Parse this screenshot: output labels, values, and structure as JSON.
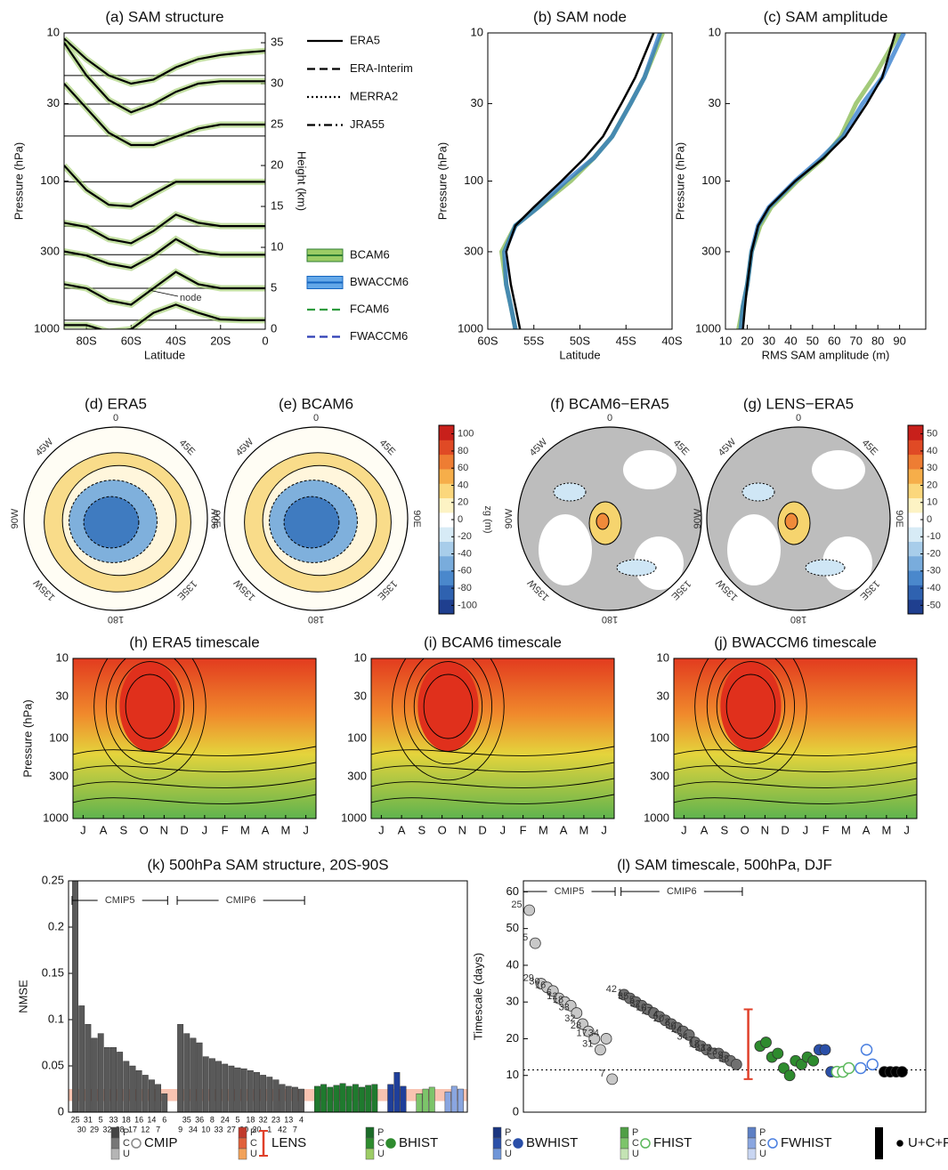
{
  "chart_data": [
    {
      "type": "profile",
      "title": "(a) SAM structure",
      "xlabel": "Latitude",
      "ylabel": "Pressure (hPa)",
      "y2label": "Height (km)",
      "xlim": [
        -90,
        0
      ],
      "xticks": [
        {
          "value": -80,
          "label": "80S"
        },
        {
          "value": -60,
          "label": "60S"
        },
        {
          "value": -40,
          "label": "40S"
        },
        {
          "value": -20,
          "label": "20S"
        },
        0
      ],
      "ylim": [
        1000,
        10
      ],
      "yticks": [
        10,
        30,
        100,
        300,
        1000
      ],
      "log": true,
      "y2lim": [
        0,
        36.2
      ],
      "y2ticks": [
        0,
        5,
        10,
        15,
        20,
        25,
        30,
        35
      ],
      "x": [
        -90,
        -80,
        -70,
        -60,
        -50,
        -40,
        -30,
        -20,
        -10,
        0
      ],
      "profiles": [
        {
          "baseline": 31,
          "values": [
            35.5,
            33,
            31,
            30,
            30.5,
            32,
            33,
            33.5,
            33.8,
            34
          ]
        },
        {
          "baseline": 27.5,
          "values": [
            35,
            31,
            28,
            26.5,
            27.5,
            29,
            30,
            30.3,
            30.3,
            30.3
          ]
        },
        {
          "baseline": 23.6,
          "values": [
            30,
            27,
            24,
            22.5,
            22.5,
            23.5,
            24.5,
            25,
            25,
            25
          ]
        },
        {
          "baseline": 18,
          "values": [
            20,
            17,
            15.2,
            15,
            16.5,
            18,
            18,
            18,
            18,
            18
          ]
        },
        {
          "baseline": 12.6,
          "values": [
            13,
            12.5,
            11,
            10.5,
            12,
            14,
            13,
            12.6,
            12.6,
            12.6
          ]
        },
        {
          "baseline": 9.1,
          "values": [
            9.5,
            9,
            8,
            7.5,
            9,
            11,
            9.5,
            9.1,
            9.1,
            9.1
          ]
        },
        {
          "baseline": 5,
          "values": [
            5.5,
            5,
            3.5,
            3,
            5,
            7,
            5.5,
            5,
            5,
            5
          ]
        },
        {
          "baseline": 1.1,
          "values": [
            0.5,
            0.5,
            -0.3,
            0,
            2,
            3,
            2,
            1.2,
            1.1,
            1.1
          ]
        }
      ],
      "annotation": "node"
    },
    {
      "type": "legend",
      "series": [
        {
          "name": "ERA5",
          "style": "solid",
          "color": "#000000"
        },
        {
          "name": "ERA-Interim",
          "style": "dash",
          "color": "#000000"
        },
        {
          "name": "MERRA2",
          "style": "dot",
          "color": "#000000"
        },
        {
          "name": "JRA55",
          "style": "dashdot",
          "color": "#000000"
        },
        {
          "name": "BCAM6",
          "style": "band",
          "color": "#2e7d32",
          "fill": "#9ccc65"
        },
        {
          "name": "BWACCM6",
          "style": "band",
          "color": "#1565c0",
          "fill": "#64a8e8"
        },
        {
          "name": "FCAM6",
          "style": "dash",
          "color": "#2e9b3e"
        },
        {
          "name": "FWACCM6",
          "style": "dash",
          "color": "#2d3fb5"
        }
      ]
    },
    {
      "type": "line",
      "title": "(b) SAM node",
      "xlabel": "Latitude",
      "ylabel": "Pressure (hPa)",
      "xlim": [
        -60,
        -40
      ],
      "xticks": [
        {
          "value": -60,
          "label": "60S"
        },
        {
          "value": -55,
          "label": "55S"
        },
        {
          "value": -50,
          "label": "50S"
        },
        {
          "value": -45,
          "label": "45S"
        },
        {
          "value": -40,
          "label": "40S"
        }
      ],
      "ylim": [
        1000,
        10
      ],
      "yticks": [
        10,
        30,
        100,
        300,
        1000
      ],
      "log": true,
      "y": [
        1000,
        700,
        500,
        300,
        200,
        150,
        100,
        70,
        50,
        30,
        20,
        10
      ],
      "series": [
        {
          "color": "#7cb342",
          "values": [
            -57,
            -57.5,
            -58,
            -58.5,
            -57,
            -54.5,
            -51,
            -48.5,
            -46.5,
            -44.5,
            -43,
            -41
          ]
        },
        {
          "color": "#1e6fc8",
          "values": [
            -57,
            -57.5,
            -58,
            -58.2,
            -57,
            -54.5,
            -51.5,
            -48.5,
            -46.5,
            -44.5,
            -43,
            -41.3
          ]
        },
        {
          "color": "#000000",
          "values": [
            -56.5,
            -57,
            -57.5,
            -58,
            -57,
            -55,
            -52,
            -49.5,
            -47.5,
            -45.5,
            -44,
            -42
          ]
        }
      ]
    },
    {
      "type": "line",
      "title": "(c) SAM amplitude",
      "xlabel": "RMS SAM amplitude (m)",
      "ylabel": "Pressure (hPa)",
      "xlim": [
        10,
        102
      ],
      "xticks": [
        10,
        20,
        30,
        40,
        50,
        60,
        70,
        80,
        90
      ],
      "ylim": [
        1000,
        10
      ],
      "yticks": [
        10,
        30,
        100,
        300,
        1000
      ],
      "log": true,
      "y": [
        1000,
        700,
        500,
        300,
        200,
        150,
        100,
        70,
        50,
        30,
        20,
        10
      ],
      "series": [
        {
          "color": "#7cb342",
          "values": [
            16,
            18,
            20,
            22,
            26,
            31,
            43,
            55,
            63,
            70,
            78,
            90
          ]
        },
        {
          "color": "#1e6fc8",
          "values": [
            17,
            18,
            20,
            22,
            25,
            30,
            42,
            54,
            64,
            73,
            82,
            92
          ]
        },
        {
          "color": "#000000",
          "values": [
            18,
            19,
            20,
            22,
            25,
            30,
            42,
            55,
            65,
            75,
            82,
            88
          ]
        }
      ]
    },
    {
      "type": "map",
      "title": "(d) ERA5",
      "style": "field",
      "lon_labels": [
        "0",
        "45E",
        "90E",
        "135E",
        "180",
        "135W",
        "90W",
        "45W"
      ]
    },
    {
      "type": "map",
      "title": "(e) BCAM6",
      "style": "field",
      "lon_labels": [
        "0",
        "45E",
        "90E",
        "135E",
        "180",
        "135W",
        "90W",
        "45W"
      ]
    },
    {
      "type": "map",
      "title": "(f) BCAM6−ERA5",
      "style": "anomaly",
      "lon_labels": [
        "0",
        "45E",
        "90E",
        "135E",
        "180",
        "135W",
        "90W",
        "45W"
      ]
    },
    {
      "type": "map",
      "title": "(g) LENS−ERA5",
      "style": "anomaly",
      "lon_labels": [
        "0",
        "45E",
        "90E",
        "135E",
        "180",
        "135W",
        "90W",
        "45W"
      ]
    },
    {
      "type": "colorbar",
      "label": "zg (m)",
      "ylim": [
        -110,
        110
      ],
      "yticks": [
        -100,
        -80,
        -60,
        -40,
        -20,
        0,
        20,
        40,
        60,
        80,
        100
      ],
      "colors": [
        "#1f3f8f",
        "#2f62b0",
        "#4a88cc",
        "#79acdc",
        "#a8cdea",
        "#d7ebf6",
        "#ffffff",
        "#fdf3c4",
        "#fbd77c",
        "#f6ae4a",
        "#ee7d33",
        "#e04a25",
        "#c8201b"
      ]
    },
    {
      "type": "colorbar",
      "label": "zg (m)",
      "ylim": [
        -55,
        55
      ],
      "yticks": [
        -50,
        -40,
        -30,
        -20,
        -10,
        0,
        10,
        20,
        30,
        40,
        50
      ],
      "colors": [
        "#1f3f8f",
        "#2f62b0",
        "#4a88cc",
        "#79acdc",
        "#a8cdea",
        "#d7ebf6",
        "#ffffff",
        "#fdf3c4",
        "#fbd77c",
        "#f6ae4a",
        "#ee7d33",
        "#e04a25",
        "#c8201b"
      ]
    },
    {
      "type": "heatmap",
      "title": "(h) ERA5 timescale",
      "ylabel": "Pressure (hPa)",
      "categories": [
        "J",
        "A",
        "S",
        "O",
        "N",
        "D",
        "J",
        "F",
        "M",
        "A",
        "M",
        "J"
      ],
      "ylim": [
        1000,
        10
      ],
      "yticks": [
        10,
        30,
        100,
        300,
        1000
      ],
      "log": true
    },
    {
      "type": "heatmap",
      "title": "(i) BCAM6 timescale",
      "categories": [
        "J",
        "A",
        "S",
        "O",
        "N",
        "D",
        "J",
        "F",
        "M",
        "A",
        "M",
        "J"
      ],
      "ylim": [
        1000,
        10
      ],
      "yticks": [
        10,
        30,
        100,
        300,
        1000
      ],
      "log": true
    },
    {
      "type": "heatmap",
      "title": "(j) BWACCM6 timescale",
      "categories": [
        "J",
        "A",
        "S",
        "O",
        "N",
        "D",
        "J",
        "F",
        "M",
        "A",
        "M",
        "J"
      ],
      "ylim": [
        1000,
        10
      ],
      "yticks": [
        10,
        30,
        100,
        300,
        1000
      ],
      "log": true
    },
    {
      "type": "bar",
      "title": "(k) 500hPa SAM structure, 20S-90S",
      "ylabel": "NMSE",
      "ylim": [
        0,
        0.25
      ],
      "yticks": [
        0,
        0.05,
        0.1,
        0.15,
        0.2,
        0.25
      ],
      "reanalysis_range": [
        0.012,
        0.025
      ],
      "groups": [
        {
          "label": "CMIP5",
          "count": 15,
          "color": "#595959"
        },
        {
          "label": "CMIP6",
          "count": 20,
          "color": "#595959"
        },
        {
          "count": 10,
          "color": "#1f7a2e"
        },
        {
          "count": 3,
          "color": "#1f3f9a"
        },
        {
          "count": 3,
          "color": "#7cc46a"
        },
        {
          "count": 3,
          "color": "#8aa6e0"
        }
      ],
      "categories": [
        "25",
        "30",
        "31",
        "29",
        "5",
        "32",
        "33",
        "28",
        "18",
        "17",
        "16",
        "12",
        "14",
        "7",
        "6",
        "9",
        "35",
        "34",
        "36",
        "10",
        "8",
        "33",
        "24",
        "27",
        "5",
        "30",
        "18",
        "20",
        "32",
        "1",
        "23",
        "42",
        "13",
        "7",
        "4",
        null,
        null,
        null,
        null,
        null,
        null,
        null,
        null,
        null,
        null,
        null,
        null,
        null,
        null,
        null,
        null,
        null,
        null,
        null
      ],
      "values": [
        0.25,
        0.115,
        0.095,
        0.08,
        0.085,
        0.07,
        0.07,
        0.065,
        0.055,
        0.05,
        0.045,
        0.04,
        0.035,
        0.03,
        0.02,
        0.095,
        0.085,
        0.08,
        0.075,
        0.06,
        0.058,
        0.055,
        0.052,
        0.05,
        0.048,
        0.047,
        0.045,
        0.043,
        0.04,
        0.038,
        0.035,
        0.03,
        0.028,
        0.027,
        0.025,
        0.028,
        0.03,
        0.027,
        0.029,
        0.031,
        0.028,
        0.03,
        0.027,
        0.029,
        0.03,
        0.03,
        0.043,
        0.028,
        0.02,
        0.025,
        0.027,
        0.022,
        0.028,
        0.025
      ]
    },
    {
      "type": "scatter",
      "title": "(l) SAM timescale, 500hPa, DJF",
      "ylabel": "Timescale (days)",
      "xlim": [
        0,
        68
      ],
      "ylim": [
        0,
        63
      ],
      "yticks": [
        0,
        10,
        20,
        30,
        40,
        50,
        60
      ],
      "reference": 11.5,
      "groups": [
        {
          "label": "CMIP5",
          "span": [
            0,
            15.5
          ]
        },
        {
          "label": "CMIP6",
          "span": [
            16.5,
            37
          ]
        }
      ],
      "series": [
        {
          "color": "#c8c8c8",
          "x": [
            1,
            2,
            3,
            4,
            5,
            6,
            7,
            8,
            9,
            10,
            11,
            12,
            13,
            14,
            15
          ],
          "values": [
            55,
            46,
            35,
            34,
            33,
            31,
            30,
            29,
            27,
            24,
            22,
            20,
            17,
            20,
            9
          ],
          "labels": [
            "25",
            "5",
            "29",
            "30",
            "16",
            "6",
            "12",
            "18",
            "33",
            "32",
            "28",
            "17",
            "31",
            "34",
            "7"
          ]
        },
        {
          "color": "#707070",
          "x": [
            17,
            18,
            19,
            20,
            21,
            22,
            23,
            24,
            25,
            26,
            27,
            28,
            29,
            30,
            31,
            32,
            33,
            34,
            35,
            36
          ],
          "values": [
            32,
            31,
            30,
            29,
            28,
            27,
            26,
            25,
            24,
            23,
            22,
            21,
            19,
            18,
            17,
            16,
            16,
            15,
            14,
            13
          ],
          "labels": [
            "42",
            "1",
            "35",
            "5",
            "32",
            "10",
            "27",
            "4",
            "20",
            "8",
            "30",
            "24",
            "34",
            "7",
            "18",
            "33",
            "13",
            "23",
            "9",
            "38"
          ]
        },
        {
          "color": "#e0402a",
          "x": [
            38
          ],
          "low": [
            9
          ],
          "high": [
            28
          ]
        },
        {
          "color": "#2e8b2e",
          "x": [
            40,
            41,
            42,
            43,
            44,
            45,
            46,
            47,
            48,
            49
          ],
          "values": [
            18,
            19,
            15,
            16,
            12,
            10,
            14,
            13,
            15,
            14
          ]
        },
        {
          "color": "#2a4fa8",
          "x": [
            50,
            51,
            52
          ],
          "values": [
            17,
            17,
            11
          ]
        },
        {
          "color": "#5cb85c",
          "hollow": true,
          "x": [
            53,
            54,
            55
          ],
          "values": [
            11,
            11,
            12
          ]
        },
        {
          "color": "#4a7fe0",
          "hollow": true,
          "x": [
            57,
            58,
            59
          ],
          "values": [
            12,
            17,
            13
          ]
        },
        {
          "color": "#000000",
          "x": [
            61,
            62,
            63,
            64
          ],
          "values": [
            11,
            11,
            11,
            11
          ]
        }
      ]
    },
    {
      "type": "key",
      "levels": [
        "P",
        "C",
        "U"
      ],
      "entries": [
        {
          "name": "CMIP",
          "colors": [
            "#444444",
            "#777777",
            "#b5b5b5"
          ],
          "marker": "hollow",
          "color": "#888888"
        },
        {
          "name": "LENS",
          "colors": [
            "#c0392b",
            "#e0603a",
            "#f2a25a"
          ],
          "marker": "errorbar",
          "color": "#e0402a"
        },
        {
          "name": "BHIST",
          "colors": [
            "#1b6b28",
            "#2e8b2e",
            "#9ccc65"
          ],
          "marker": "circle",
          "color": "#2e8b2e"
        },
        {
          "name": "BWHIST",
          "colors": [
            "#1a3580",
            "#2a4fa8",
            "#6f95d8"
          ],
          "marker": "circle",
          "color": "#2a4fa8"
        },
        {
          "name": "FHIST",
          "colors": [
            "#4f9e45",
            "#7cc46a",
            "#c4e3b4"
          ],
          "marker": "hollow",
          "color": "#5cb85c"
        },
        {
          "name": "FWHIST",
          "colors": [
            "#5d7fc4",
            "#8aa6e0",
            "#c9d6f2"
          ],
          "marker": "hollow",
          "color": "#4a7fe0"
        },
        {
          "name": "U+C+P reanalyses",
          "colors": [
            "#000000"
          ],
          "marker": "dot",
          "color": "#000000"
        }
      ]
    }
  ]
}
